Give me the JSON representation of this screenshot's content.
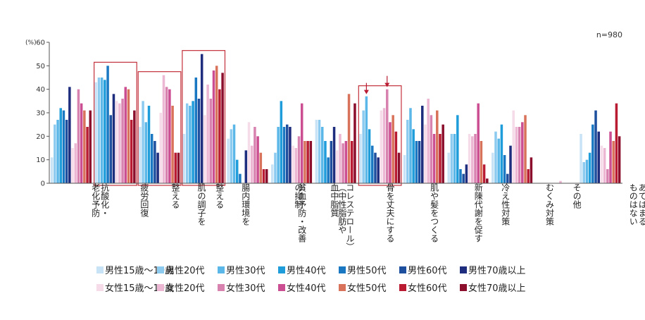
{
  "chart_data": {
    "type": "bar",
    "unit_label": "(%)",
    "note": "n=980",
    "ylim": [
      0,
      60
    ],
    "yticks": [
      0,
      10,
      20,
      30,
      40,
      50,
      60
    ],
    "grid": false,
    "legend_position": "bottom",
    "categories": [
      {
        "label": "抗酸化・\n老化予防"
      },
      {
        "label": "疲労回復"
      },
      {
        "label": "肌の調子を\n整える"
      },
      {
        "label": "腸内環境を\n整える"
      },
      {
        "label": "貧血予防・改善"
      },
      {
        "label": "血中脂質\n（中性脂肪や\nコレステロール）\nの抑制"
      },
      {
        "label": "骨を丈夫にする"
      },
      {
        "label": "肌や髪をつくる"
      },
      {
        "label": "新陳代謝を促す"
      },
      {
        "label": "冷え性対策"
      },
      {
        "label": "むくみ対策"
      },
      {
        "label": "その他"
      },
      {
        "label": "あてはまる\nものはない"
      }
    ],
    "highlighted_categories": [
      1,
      2,
      3,
      7
    ],
    "arrow_marks": [
      {
        "category": 7,
        "series": 2
      },
      {
        "category": 7,
        "series": 9
      }
    ],
    "series": [
      {
        "name": "男性15歳〜19歳",
        "color": "#c9e3f6",
        "values": [
          11,
          43,
          24,
          21,
          19,
          8,
          27,
          21,
          12,
          13,
          13,
          0,
          21
        ]
      },
      {
        "name": "男性20代",
        "color": "#8ccbef",
        "values": [
          25,
          45,
          35,
          34,
          23,
          13,
          27,
          31,
          27,
          21,
          22,
          0,
          9
        ]
      },
      {
        "name": "男性30代",
        "color": "#5bb7e8",
        "values": [
          27,
          45,
          26,
          33,
          25,
          24,
          24,
          37,
          32,
          21,
          19,
          0,
          10
        ]
      },
      {
        "name": "男性40代",
        "color": "#1f9ddb",
        "values": [
          32,
          44,
          33,
          35,
          10,
          35,
          18,
          23,
          23,
          29,
          25,
          0,
          13
        ]
      },
      {
        "name": "男性50代",
        "color": "#1a78c2",
        "values": [
          31,
          50,
          21,
          45,
          4,
          24,
          11,
          16,
          18,
          6,
          12,
          0,
          25
        ]
      },
      {
        "name": "男性60代",
        "color": "#1e4f9e",
        "values": [
          27,
          29,
          18,
          36,
          0,
          25,
          18,
          13,
          18,
          4,
          4,
          0,
          31
        ]
      },
      {
        "name": "男性70歳以上",
        "color": "#1e2d7e",
        "values": [
          41,
          38,
          13,
          55,
          14,
          24,
          24,
          11,
          33,
          8,
          16,
          0,
          22
        ]
      },
      {
        "name": "女性15歳〜19歳",
        "color": "#f6dbe8",
        "values": [
          15,
          35,
          30,
          29,
          26,
          16,
          14,
          31,
          25,
          21,
          31,
          0,
          16
        ]
      },
      {
        "name": "女性20代",
        "color": "#ebb7d2",
        "values": [
          17,
          34,
          46,
          42,
          16,
          15,
          21,
          32,
          36,
          20,
          24,
          1,
          15
        ]
      },
      {
        "name": "女性30代",
        "color": "#d882b0",
        "values": [
          40,
          36,
          41,
          36,
          24,
          20,
          17,
          40,
          29,
          21,
          24,
          0,
          6
        ]
      },
      {
        "name": "女性40代",
        "color": "#cc4e92",
        "values": [
          34,
          41,
          40,
          48,
          20,
          34,
          18,
          26,
          21,
          34,
          26,
          0,
          22
        ]
      },
      {
        "name": "女性50代",
        "color": "#d9725a",
        "values": [
          31,
          40,
          33,
          50,
          13,
          18,
          38,
          29,
          31,
          18,
          29,
          0,
          18
        ]
      },
      {
        "name": "女性60代",
        "color": "#b81b32",
        "values": [
          24,
          27,
          13,
          40,
          6,
          18,
          18,
          22,
          21,
          8,
          6,
          0,
          34
        ]
      },
      {
        "name": "女性70歳以上",
        "color": "#8b0f2c",
        "values": [
          31,
          31,
          13,
          47,
          6,
          18,
          34,
          13,
          25,
          2,
          11,
          0,
          20
        ]
      }
    ]
  }
}
